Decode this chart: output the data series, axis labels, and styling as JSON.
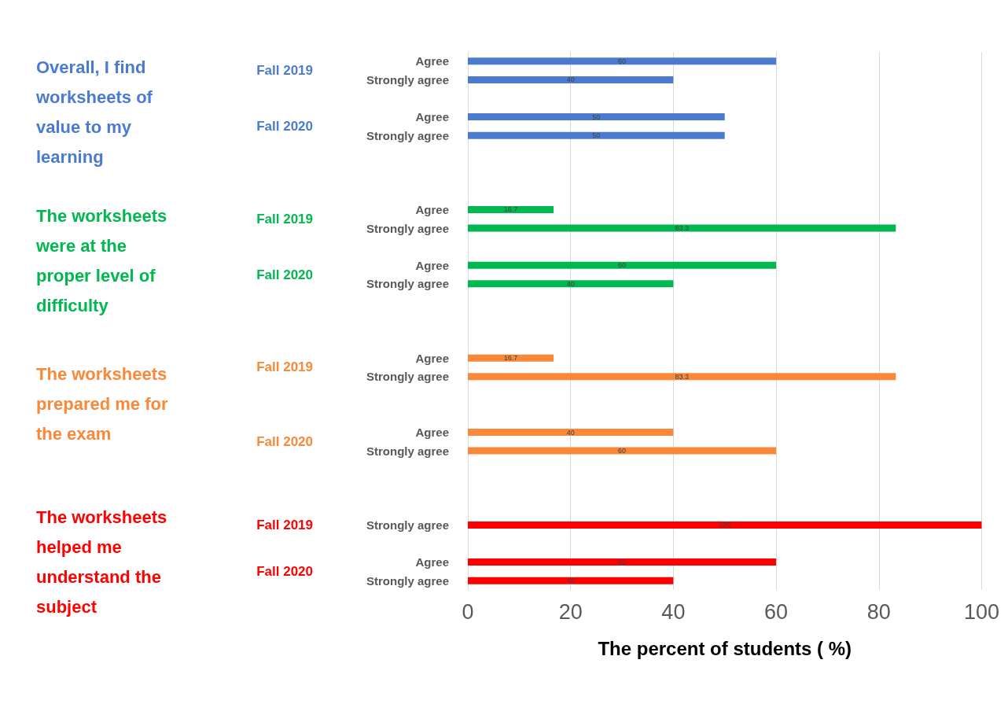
{
  "chart_data": {
    "type": "bar",
    "orientation": "horizontal",
    "xlabel": "The percent of students ( %)",
    "categories": [
      "Agree",
      "Strongly agree",
      null,
      "Agree",
      "Strongly agree",
      null,
      null,
      null,
      "Agree",
      "Strongly agree",
      null,
      "Agree",
      "Strongly agree",
      null,
      null,
      null,
      "Agree",
      "Strongly agree",
      null,
      null,
      "Agree",
      "Strongly agree",
      null,
      null,
      null,
      "Strongly agree",
      null,
      "Agree",
      "Strongly agree"
    ],
    "values": [
      60,
      40,
      null,
      50,
      50,
      null,
      null,
      null,
      16.7,
      83.3,
      null,
      60,
      40,
      null,
      null,
      null,
      16.7,
      83.3,
      null,
      null,
      40,
      60,
      null,
      null,
      null,
      100,
      null,
      60,
      40
    ],
    "colors": [
      "#4a7bd0",
      "#4a7bd0",
      null,
      "#4a7bd0",
      "#4a7bd0",
      null,
      null,
      null,
      "#00b84f",
      "#00b84f",
      null,
      "#00b84f",
      "#00b84f",
      null,
      null,
      null,
      "#f98838",
      "#f98838",
      null,
      null,
      "#f98838",
      "#f98838",
      null,
      null,
      null,
      "#ff0000",
      null,
      "#ff0000",
      "#ff0000"
    ],
    "annotations": [
      "Overall, I find worksheets of value to my learning",
      "Fall 2019",
      "Fall 2020",
      "The worksheets were at the proper level of difficulty",
      "Fall 2019",
      "Fall 2020",
      "The worksheets prepared me for the exam",
      "Fall 2019",
      "Fall 2020",
      "The worksheets helped me understand the subject",
      "Fall 2019",
      "Fall 2020"
    ],
    "xlim": [
      0,
      100
    ],
    "xticks": [
      0,
      20,
      40,
      60,
      80,
      100
    ],
    "grid": "x",
    "data_labels": true
  }
}
